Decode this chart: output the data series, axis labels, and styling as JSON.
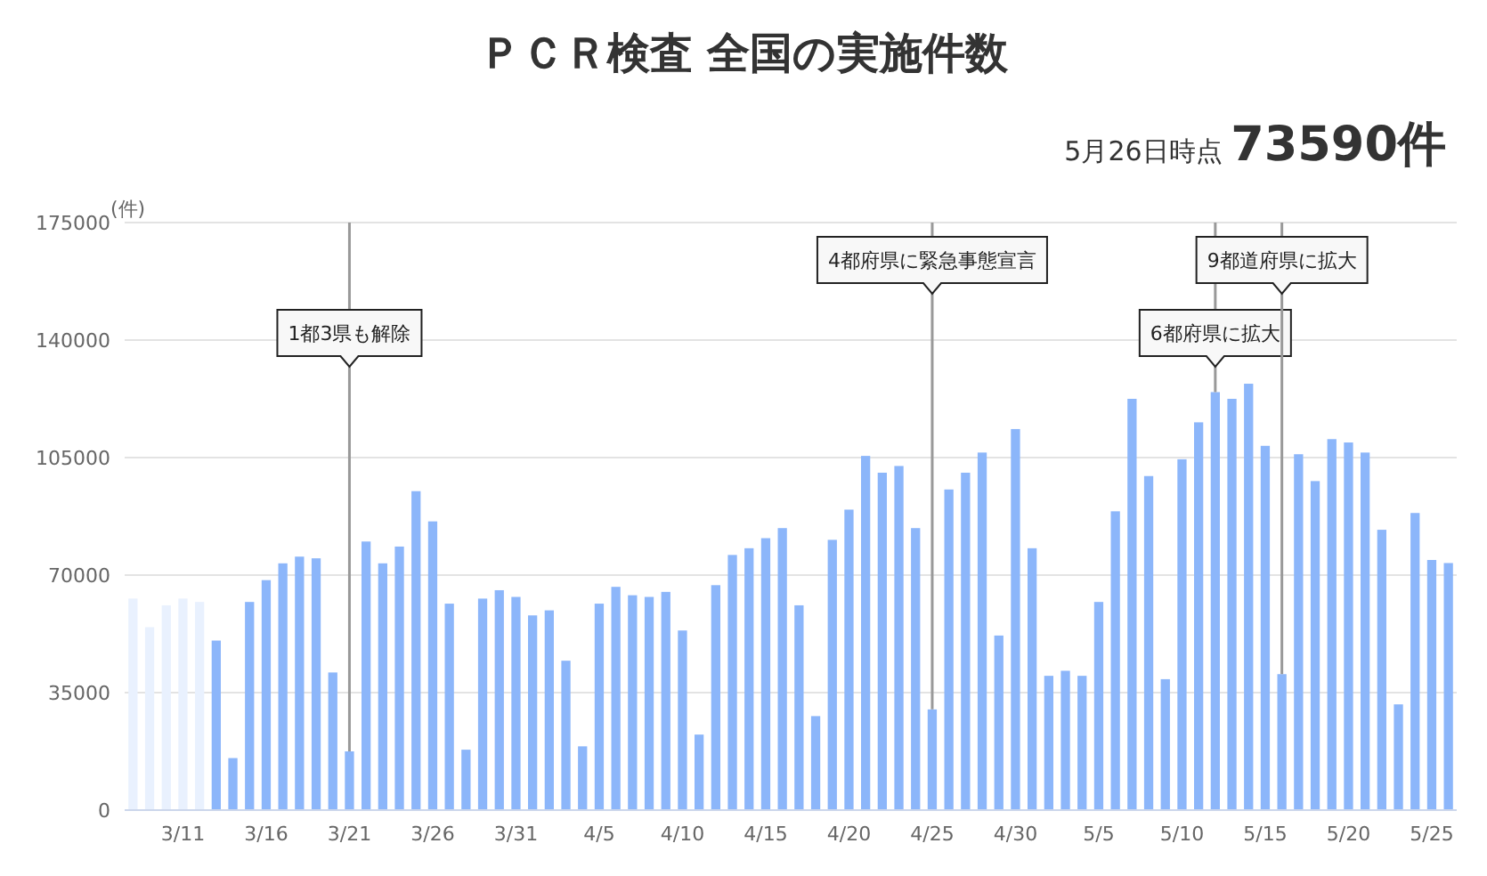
{
  "chart_data": {
    "type": "bar",
    "title": "ＰＣＲ検査 全国の実施件数",
    "subtitle": "5月26日時点 **73590件**",
    "ylabel": "(件)",
    "x": [
      "--03-08",
      "--03-09",
      "--03-10",
      "--03-11",
      "--03-12",
      "--03-13",
      "--03-14",
      "--03-15",
      "--03-16",
      "--03-17",
      "--03-18",
      "--03-19",
      "--03-20",
      "--03-21",
      "--03-22",
      "--03-23",
      "--03-24",
      "--03-25",
      "--03-26",
      "--03-27",
      "--03-28",
      "--03-29",
      "--03-30",
      "--03-31",
      "--04-01",
      "--04-02",
      "--04-03",
      "--04-04",
      "--04-05",
      "--04-06",
      "--04-07",
      "--04-08",
      "--04-09",
      "--04-10",
      "--04-11",
      "--04-12",
      "--04-13",
      "--04-14",
      "--04-15",
      "--04-16",
      "--04-17",
      "--04-18",
      "--04-19",
      "--04-20",
      "--04-21",
      "--04-22",
      "--04-23",
      "--04-24",
      "--04-25",
      "--04-26",
      "--04-27",
      "--04-28",
      "--04-29",
      "--04-30",
      "--05-01",
      "--05-02",
      "--05-03",
      "--05-04",
      "--05-05",
      "--05-06",
      "--05-07",
      "--05-08",
      "--05-09",
      "--05-10",
      "--05-11",
      "--05-12",
      "--05-13",
      "--05-14",
      "--05-15",
      "--05-16",
      "--05-17",
      "--05-18",
      "--05-19",
      "--05-20",
      "--05-21",
      "--05-22",
      "--05-23",
      "--05-24",
      "--05-25",
      "--05-26"
    ],
    "values": [
      63000,
      54500,
      61000,
      63000,
      62000,
      50500,
      15500,
      62000,
      68500,
      73500,
      75500,
      75000,
      41000,
      17500,
      80000,
      73500,
      78500,
      95000,
      86000,
      61500,
      18000,
      63000,
      65500,
      63500,
      58000,
      59500,
      44500,
      19000,
      61500,
      66500,
      64000,
      63500,
      65000,
      53500,
      22500,
      67000,
      76000,
      78000,
      81000,
      84000,
      61000,
      28000,
      80500,
      89500,
      105500,
      100500,
      102500,
      84000,
      30000,
      95500,
      100500,
      106500,
      52000,
      113500,
      78000,
      40000,
      41500,
      40000,
      62000,
      89000,
      122500,
      99500,
      39000,
      104500,
      115500,
      124500,
      122500,
      127000,
      108500,
      40500,
      106000,
      98000,
      110500,
      109500,
      106500,
      83500,
      31500,
      88500,
      74500,
      73590
    ],
    "colors": [
      "#e9f1fe",
      "#e9f1fe",
      "#e9f1fe",
      "#e9f1fe",
      "#e9f1fe",
      "#8cb6fa",
      "#8cb6fa",
      "#8cb6fa",
      "#8cb6fa",
      "#8cb6fa",
      "#8cb6fa",
      "#8cb6fa",
      "#8cb6fa",
      "#8cb6fa",
      "#8cb6fa",
      "#8cb6fa",
      "#8cb6fa",
      "#8cb6fa",
      "#8cb6fa",
      "#8cb6fa",
      "#8cb6fa",
      "#8cb6fa",
      "#8cb6fa",
      "#8cb6fa",
      "#8cb6fa",
      "#8cb6fa",
      "#8cb6fa",
      "#8cb6fa",
      "#8cb6fa",
      "#8cb6fa",
      "#8cb6fa",
      "#8cb6fa",
      "#8cb6fa",
      "#8cb6fa",
      "#8cb6fa",
      "#8cb6fa",
      "#8cb6fa",
      "#8cb6fa",
      "#8cb6fa",
      "#8cb6fa",
      "#8cb6fa",
      "#8cb6fa",
      "#8cb6fa",
      "#8cb6fa",
      "#8cb6fa",
      "#8cb6fa",
      "#8cb6fa",
      "#8cb6fa",
      "#8cb6fa",
      "#8cb6fa",
      "#8cb6fa",
      "#8cb6fa",
      "#8cb6fa",
      "#8cb6fa",
      "#8cb6fa",
      "#8cb6fa",
      "#8cb6fa",
      "#8cb6fa",
      "#8cb6fa",
      "#8cb6fa",
      "#8cb6fa",
      "#8cb6fa",
      "#8cb6fa",
      "#8cb6fa",
      "#8cb6fa",
      "#8cb6fa",
      "#8cb6fa",
      "#8cb6fa",
      "#8cb6fa",
      "#8cb6fa",
      "#8cb6fa",
      "#8cb6fa",
      "#8cb6fa",
      "#8cb6fa",
      "#8cb6fa",
      "#8cb6fa",
      "#8cb6fa",
      "#8cb6fa",
      "#8cb6fa",
      "#8cb6fa"
    ],
    "xlim": [
      "--03-07T12:00",
      "--05-26T12:00"
    ],
    "xticks": [
      {
        "value": "--03-11",
        "label": "3/11"
      },
      {
        "value": "--03-16",
        "label": "3/16"
      },
      {
        "value": "--03-21",
        "label": "3/21"
      },
      {
        "value": "--03-26",
        "label": "3/26"
      },
      {
        "value": "--03-31",
        "label": "3/31"
      },
      {
        "value": "--04-05",
        "label": "4/5"
      },
      {
        "value": "--04-10",
        "label": "4/10"
      },
      {
        "value": "--04-15",
        "label": "4/15"
      },
      {
        "value": "--04-20",
        "label": "4/20"
      },
      {
        "value": "--04-25",
        "label": "4/25"
      },
      {
        "value": "--04-30",
        "label": "4/30"
      },
      {
        "value": "--05-05",
        "label": "5/5"
      },
      {
        "value": "--05-10",
        "label": "5/10"
      },
      {
        "value": "--05-15",
        "label": "5/15"
      },
      {
        "value": "--05-20",
        "label": "5/20"
      },
      {
        "value": "--05-25",
        "label": "5/25"
      }
    ],
    "ylim": [
      0,
      175000
    ],
    "yticks": [
      0,
      35000,
      70000,
      105000,
      140000,
      175000
    ],
    "grid": "y",
    "ref_lines": [
      {
        "axis": "x",
        "value": "--03-21",
        "label": "1都3県も解除",
        "color": "#999999"
      },
      {
        "axis": "x",
        "value": "--04-25",
        "label": "4都府県に緊急事態宣言",
        "color": "#999999"
      },
      {
        "axis": "x",
        "value": "--05-12",
        "label": "6都府県に拡大",
        "color": "#999999"
      },
      {
        "axis": "x",
        "value": "--05-16",
        "label": "9都道府県に拡大",
        "color": "#999999"
      }
    ]
  }
}
